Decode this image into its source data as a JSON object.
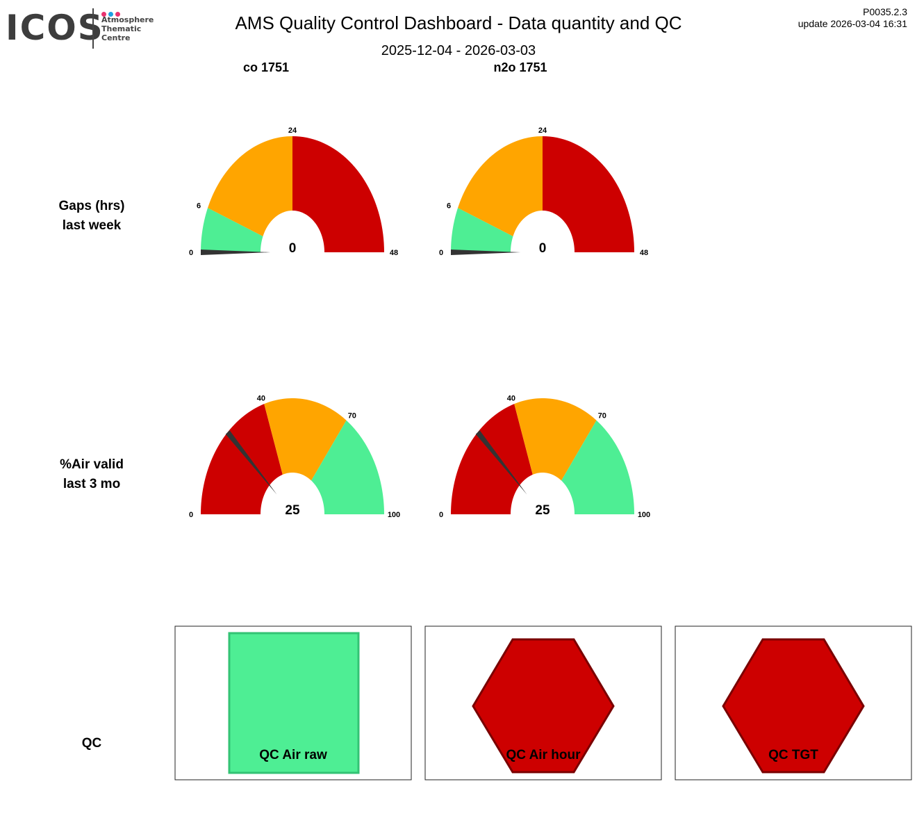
{
  "logo": {
    "text": "ICOS",
    "subtitle_lines": [
      "Atmosphere",
      "Thematic",
      "Centre"
    ],
    "dot_colors": [
      "#e8336f",
      "#1ba0e2",
      "#e8336f"
    ]
  },
  "header": {
    "title": "AMS  Quality Control Dashboard - Data quantity and QC",
    "date_range": "2025-12-04 - 2026-03-03",
    "version": "P0035.2.3",
    "update": "update  2026-03-04 16:31"
  },
  "columns": [
    "co 1751",
    "n2o 1751"
  ],
  "rows": {
    "gaps": [
      "Gaps (hrs)",
      "last week"
    ],
    "air": [
      "%Air valid",
      "last 3 mo"
    ],
    "qc": "QC"
  },
  "colors": {
    "green": "#4eee94",
    "orange": "#ffa500",
    "red": "#cd0000",
    "needle": "#333333"
  },
  "gauges": [
    {
      "row": "gaps",
      "column": 0,
      "value": 0,
      "value_label": "0",
      "min": 0,
      "max": 48,
      "ticks": [
        "0",
        "6",
        "24",
        "48"
      ],
      "bands": [
        [
          0,
          6,
          "green"
        ],
        [
          6,
          24,
          "orange"
        ],
        [
          24,
          48,
          "red"
        ]
      ]
    },
    {
      "row": "gaps",
      "column": 1,
      "value": 0,
      "value_label": "0",
      "min": 0,
      "max": 48,
      "ticks": [
        "0",
        "6",
        "24",
        "48"
      ],
      "bands": [
        [
          0,
          6,
          "green"
        ],
        [
          6,
          24,
          "orange"
        ],
        [
          24,
          48,
          "red"
        ]
      ]
    },
    {
      "row": "air",
      "column": 0,
      "value": 25,
      "value_label": "25",
      "min": 0,
      "max": 100,
      "ticks": [
        "0",
        "40",
        "70",
        "100"
      ],
      "bands": [
        [
          0,
          40,
          "red"
        ],
        [
          40,
          70,
          "orange"
        ],
        [
          70,
          100,
          "green"
        ]
      ]
    },
    {
      "row": "air",
      "column": 1,
      "value": 25,
      "value_label": "25",
      "min": 0,
      "max": 100,
      "ticks": [
        "0",
        "40",
        "70",
        "100"
      ],
      "bands": [
        [
          0,
          40,
          "red"
        ],
        [
          40,
          70,
          "orange"
        ],
        [
          70,
          100,
          "green"
        ]
      ]
    }
  ],
  "qc": [
    {
      "label": "QC Air raw",
      "status": "ok",
      "shape": "square",
      "color": "green"
    },
    {
      "label": "QC Air hour",
      "status": "fail",
      "shape": "hexagon",
      "color": "red"
    },
    {
      "label": "QC TGT",
      "status": "fail",
      "shape": "hexagon",
      "color": "red"
    }
  ]
}
